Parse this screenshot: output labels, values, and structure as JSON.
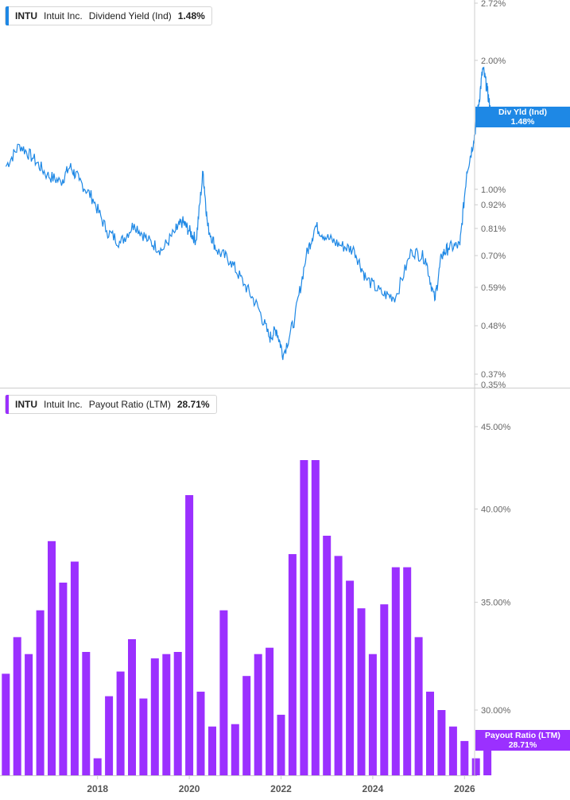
{
  "colors": {
    "line": "#1e88e5",
    "bar": "#9b30ff",
    "axis": "#cccccc",
    "label": "#666666"
  },
  "panels": {
    "top": {
      "legend": {
        "symbol": "INTU",
        "company": "Intuit Inc.",
        "metric": "Dividend Yield (Ind)",
        "value": "1.48%"
      },
      "tag": {
        "label": "Div Yld (Ind)",
        "value": "1.48%"
      }
    },
    "bottom": {
      "legend": {
        "symbol": "INTU",
        "company": "Intuit Inc.",
        "metric": "Payout Ratio (LTM)",
        "value": "28.71%"
      },
      "tag": {
        "label": "Payout Ratio (LTM)",
        "value": "28.71%"
      }
    }
  },
  "chart_data": [
    {
      "type": "line",
      "title": "Dividend Yield (Ind)",
      "series": [
        {
          "name": "Dividend Yield (Ind)",
          "x": [
            2016.0,
            2016.3,
            2016.6,
            2016.9,
            2017.2,
            2017.4,
            2017.6,
            2017.9,
            2018.2,
            2018.5,
            2018.8,
            2019.1,
            2019.4,
            2019.7,
            2019.85,
            2020.0,
            2020.15,
            2020.3,
            2020.4,
            2020.6,
            2020.9,
            2021.2,
            2021.5,
            2021.75,
            2021.9,
            2022.05,
            2022.3,
            2022.55,
            2022.75,
            2023.0,
            2023.3,
            2023.6,
            2023.85,
            2024.2,
            2024.5,
            2024.85,
            2025.15,
            2025.35,
            2025.5,
            2025.65,
            2025.9,
            2026.05,
            2026.2,
            2026.3,
            2026.4,
            2026.5,
            2026.58
          ],
          "y": [
            1.13,
            1.27,
            1.18,
            1.08,
            1.04,
            1.13,
            1.05,
            0.95,
            0.8,
            0.75,
            0.83,
            0.76,
            0.72,
            0.8,
            0.84,
            0.8,
            0.76,
            1.1,
            0.82,
            0.72,
            0.68,
            0.6,
            0.53,
            0.45,
            0.47,
            0.41,
            0.5,
            0.7,
            0.82,
            0.77,
            0.74,
            0.72,
            0.62,
            0.57,
            0.56,
            0.72,
            0.69,
            0.55,
            0.7,
            0.73,
            0.74,
            1.1,
            1.3,
            1.55,
            1.92,
            1.7,
            1.48
          ]
        }
      ],
      "y_ticks": [
        "2.72%",
        "2.00%",
        "1.00%",
        "0.92%",
        "0.81%",
        "0.70%",
        "0.59%",
        "0.48%",
        "0.37%",
        "0.35%"
      ],
      "y_tick_values": [
        2.72,
        2.0,
        1.0,
        0.92,
        0.81,
        0.7,
        0.59,
        0.48,
        0.37,
        0.35
      ],
      "scale": "log",
      "grid": false
    },
    {
      "type": "bar",
      "title": "Payout Ratio (LTM)",
      "series": [
        {
          "name": "Payout Ratio (LTM)",
          "x": [
            2016.0,
            2016.25,
            2016.5,
            2016.75,
            2017.0,
            2017.25,
            2017.5,
            2017.75,
            2018.0,
            2018.25,
            2018.5,
            2018.75,
            2019.0,
            2019.25,
            2019.5,
            2019.75,
            2020.0,
            2020.25,
            2020.5,
            2020.75,
            2021.0,
            2021.25,
            2021.5,
            2021.75,
            2022.0,
            2022.25,
            2022.5,
            2022.75,
            2023.0,
            2023.25,
            2023.5,
            2023.75,
            2024.0,
            2024.25,
            2024.5,
            2024.75,
            2025.0,
            2025.25,
            2025.5,
            2025.75,
            2026.0,
            2026.25,
            2026.5
          ],
          "values": [
            31.6,
            33.3,
            32.5,
            34.6,
            38.2,
            36.0,
            37.1,
            32.6,
            28.0,
            30.6,
            31.7,
            33.2,
            30.5,
            32.3,
            32.5,
            32.6,
            40.8,
            30.8,
            29.3,
            34.6,
            29.4,
            31.5,
            32.5,
            32.8,
            29.8,
            37.5,
            42.9,
            42.9,
            38.5,
            37.4,
            36.1,
            34.7,
            32.5,
            34.9,
            36.8,
            36.8,
            33.3,
            30.8,
            30.0,
            29.3,
            28.7,
            28.0,
            28.71
          ]
        }
      ],
      "y_ticks": [
        "45.00%",
        "40.00%",
        "35.00%",
        "30.00%"
      ],
      "y_tick_values": [
        45,
        40,
        35,
        30
      ],
      "x_ticks": [
        "2018",
        "2020",
        "2022",
        "2024",
        "2026"
      ],
      "x_tick_values": [
        2018,
        2020,
        2022,
        2024,
        2026
      ],
      "grid": false
    }
  ]
}
